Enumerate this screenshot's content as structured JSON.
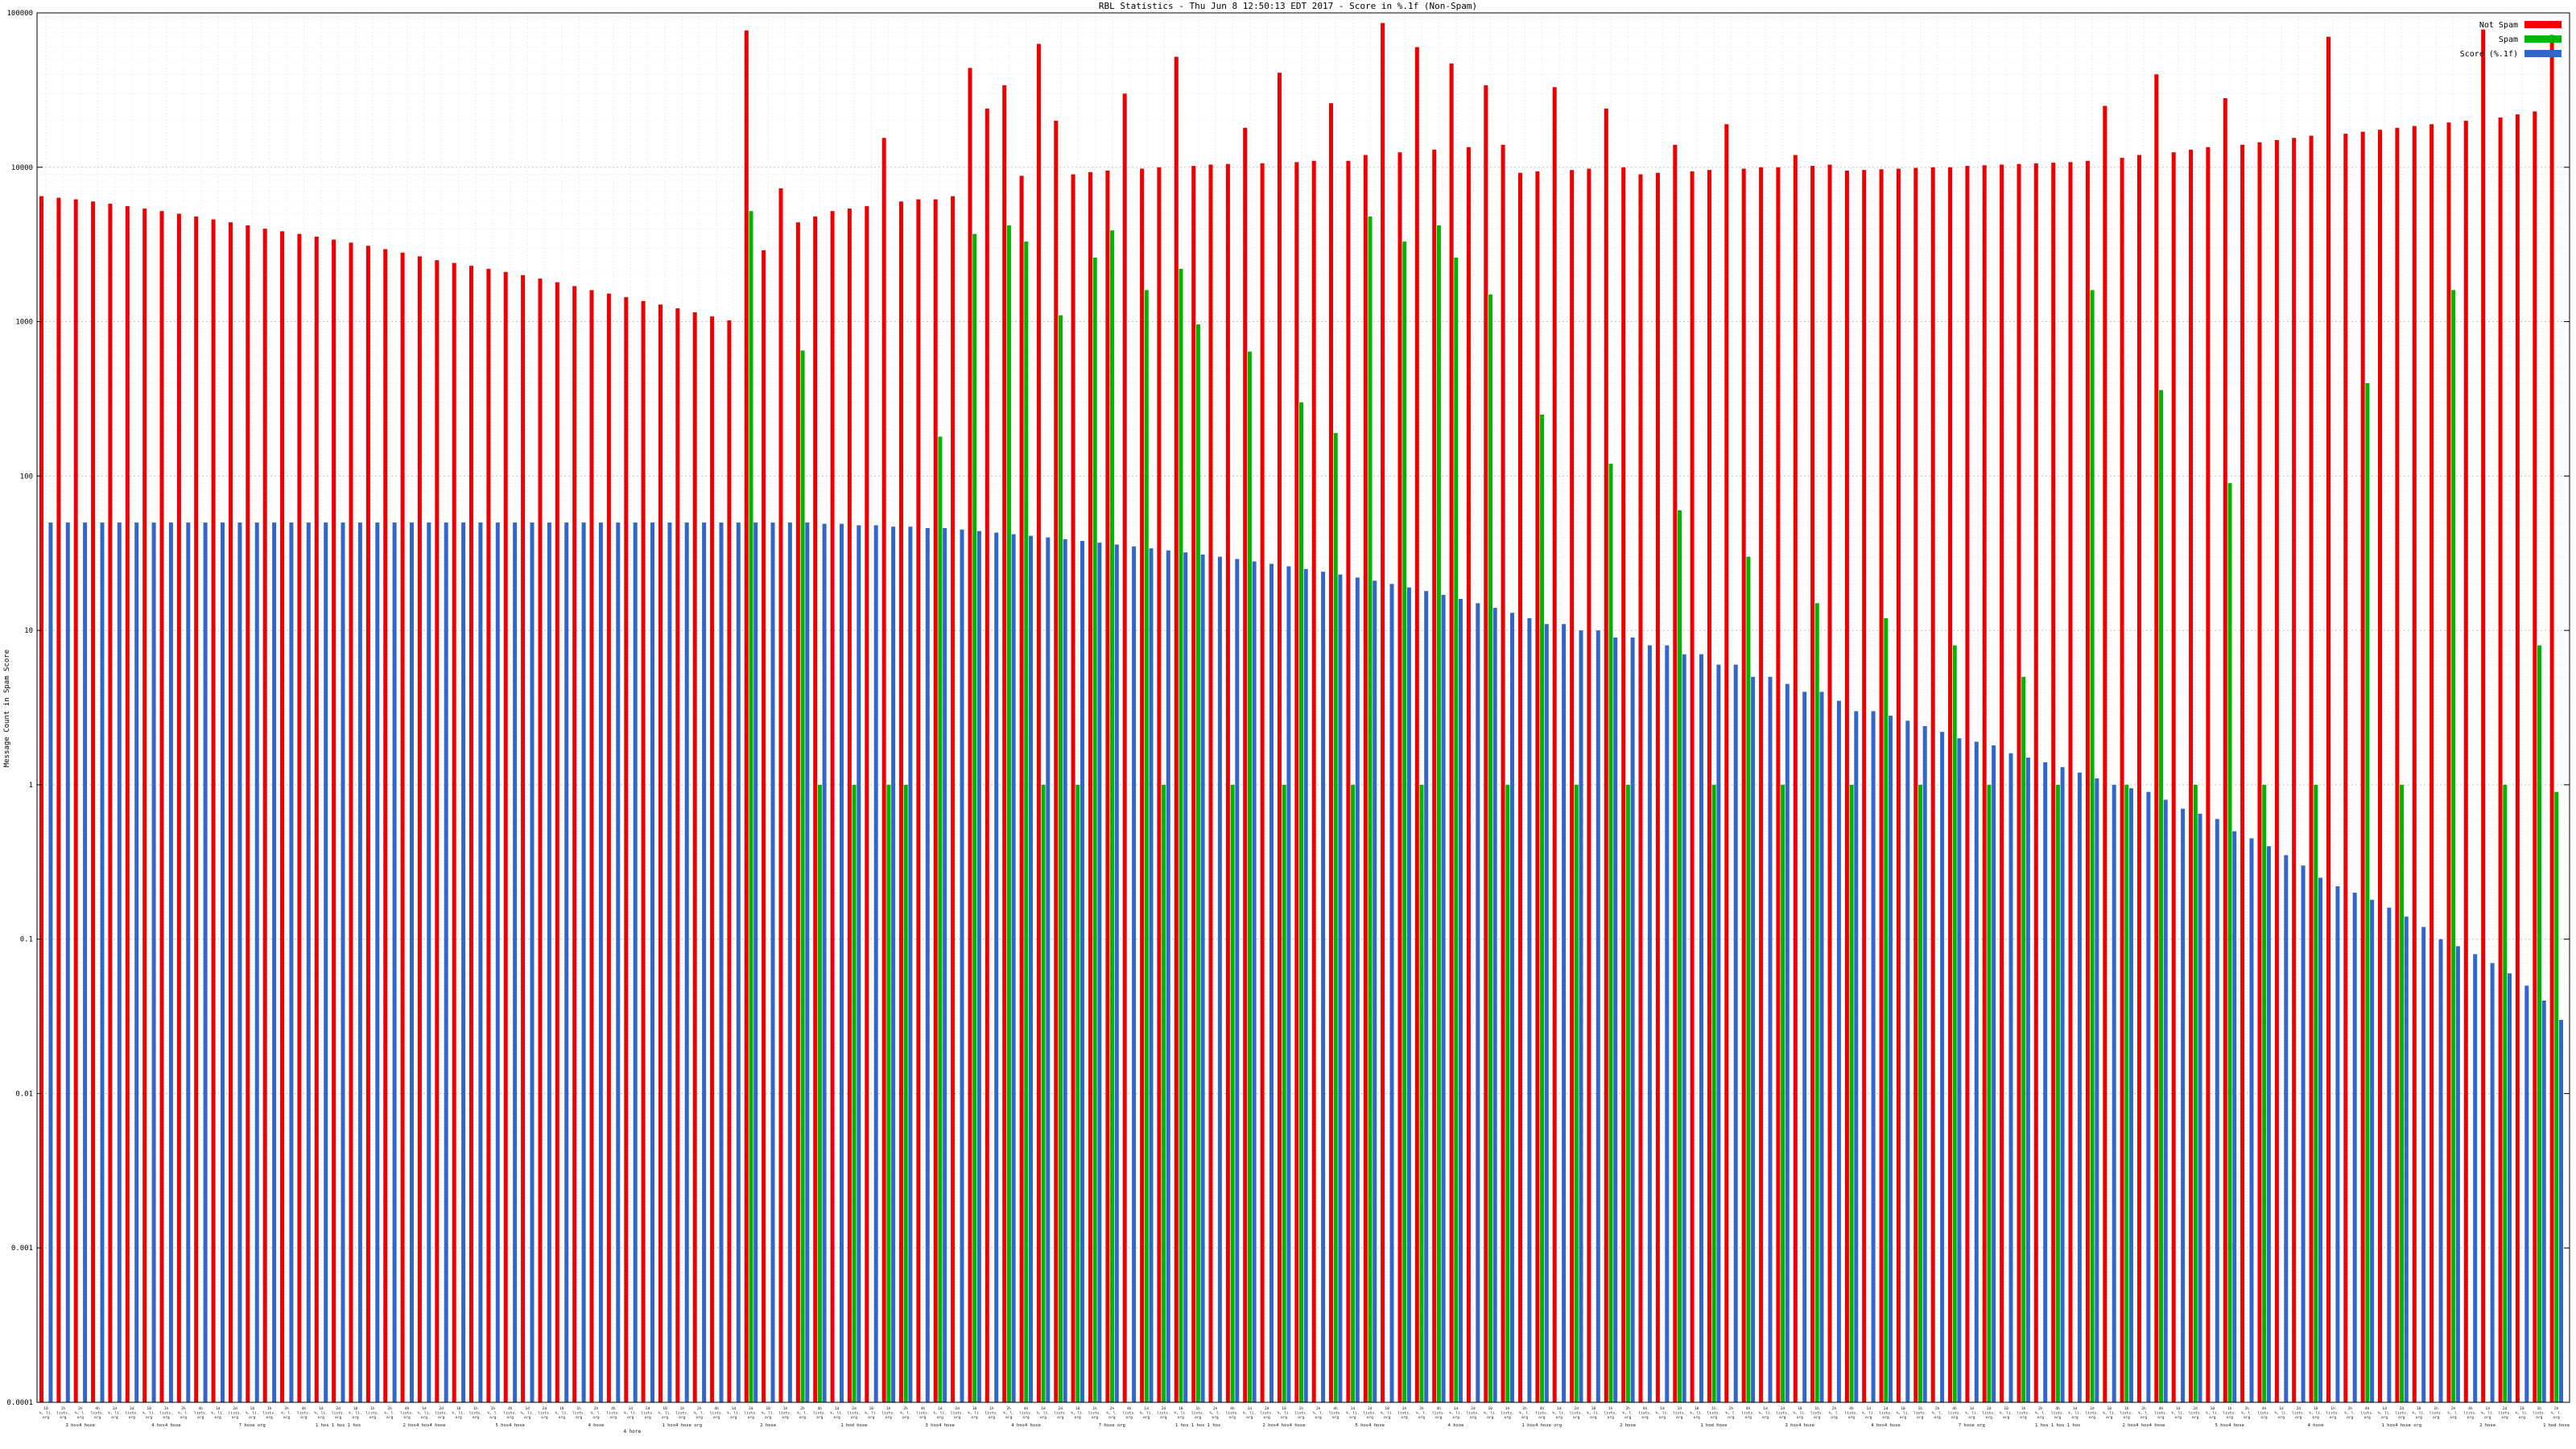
{
  "title": "RBL Statistics - Thu Jun 8 12:50:13 EDT 2017 - Score in %.1f (Non-Spam)",
  "ylabel": "Message Count in Spam Score",
  "legend": [
    {
      "label": "Not Spam",
      "color": "#ee0000"
    },
    {
      "label": "Spam",
      "color": "#00b400"
    },
    {
      "label": "Score (%.1f)",
      "color": "#3366cc"
    }
  ],
  "colors": {
    "not_spam": "#ee0000",
    "spam": "#00b400",
    "score": "#3366cc"
  },
  "x_captions": [
    "3 hos4 hose",
    "4 hos4 hose",
    "7 hose org",
    "1 hos 1 hos 1 hos",
    "2 hos4 hos4 hose",
    "5 hos4 hose",
    "4 hose",
    "1 hos4 hose org",
    "2 hose",
    "1 hod hose",
    "3 hos4 hose",
    "4 hos4 hose",
    "7 hose org",
    "1 hos 1 hos 1 hos",
    "2 hos4 hos4 hose",
    "5 hos4 hose",
    "4 hose",
    "1 hos4 hose org",
    "2 hose",
    "1 hod hose",
    "3 hos4 hose",
    "4 hos4 hose",
    "7 hose org",
    "1 hos 1 hos 1 hos",
    "2 hos4 hos4 hose",
    "5 hos4 hose",
    "4 hose",
    "1 hos4 hose org",
    "2 hose",
    "1 hod hose"
  ],
  "x_footer": [
    {
      "frac": 0.235,
      "text": "4 hore"
    }
  ],
  "chart_data": {
    "type": "bar",
    "yscale": "log",
    "ylim": [
      0.0001,
      100000
    ],
    "grid": true,
    "legend_position": "top-right",
    "y_ticks": [
      "100000",
      "10000",
      "1000",
      "100",
      "10",
      "1",
      "0.1",
      "0.01",
      "0.001",
      "0.0001"
    ],
    "series_names": [
      "Not Spam",
      "Spam",
      "Score"
    ],
    "not_spam": [
      6500,
      6350,
      6200,
      6000,
      5800,
      5600,
      5400,
      5200,
      5000,
      4800,
      4600,
      4400,
      4200,
      4000,
      3850,
      3700,
      3550,
      3400,
      3250,
      3100,
      2950,
      2800,
      2650,
      2500,
      2400,
      2300,
      2200,
      2100,
      2000,
      1900,
      1800,
      1700,
      1600,
      1520,
      1440,
      1360,
      1290,
      1220,
      1150,
      1080,
      1020,
      77000,
      2900,
      7300,
      4400,
      4800,
      5200,
      5400,
      5600,
      15500,
      6000,
      6200,
      6200,
      6500,
      44000,
      24000,
      34000,
      8800,
      63000,
      20000,
      9000,
      9300,
      9500,
      30000,
      9800,
      10000,
      52000,
      10200,
      10400,
      10500,
      18000,
      10600,
      41000,
      10800,
      11000,
      26000,
      11000,
      12000,
      86000,
      12500,
      60000,
      13000,
      47000,
      13500,
      34000,
      14000,
      9200,
      9400,
      33000,
      9600,
      9800,
      24000,
      10000,
      9000,
      9200,
      14000,
      9400,
      9600,
      19000,
      9800,
      10000,
      10000,
      12000,
      10200,
      10400,
      9500,
      9600,
      9700,
      9800,
      9900,
      10000,
      10000,
      10200,
      10300,
      10400,
      10500,
      10600,
      10700,
      10800,
      11000,
      25000,
      11500,
      12000,
      40000,
      12500,
      13000,
      13500,
      28000,
      14000,
      14500,
      15000,
      15500,
      16000,
      70000,
      16500,
      17000,
      17500,
      18000,
      18500,
      19000,
      19500,
      20000,
      78000,
      21000,
      22000,
      23000,
      72000
    ],
    "spam": [
      0,
      0,
      0,
      0,
      0,
      0,
      0,
      0,
      0,
      0,
      0,
      0,
      0,
      0,
      0,
      0,
      0,
      0,
      0,
      0,
      0,
      0,
      0,
      0,
      0,
      0,
      0,
      0,
      0,
      0,
      0,
      0,
      0,
      0,
      0,
      0,
      0,
      0,
      0,
      0,
      0,
      5200,
      0,
      0,
      650,
      1,
      0,
      1,
      0,
      1,
      1,
      0,
      180,
      0,
      3700,
      0,
      4200,
      3300,
      1,
      1100,
      1,
      2600,
      3900,
      0,
      1600,
      1,
      2200,
      960,
      0,
      1,
      640,
      0,
      1,
      300,
      0,
      190,
      1,
      4800,
      0,
      3300,
      1,
      4200,
      2600,
      0,
      1500,
      1,
      0,
      250,
      0,
      1,
      0,
      120,
      1,
      0,
      0,
      60,
      0,
      1,
      0,
      30,
      0,
      1,
      0,
      15,
      0,
      1,
      0,
      12,
      0,
      1,
      0,
      8,
      0,
      1,
      0,
      5,
      0,
      1,
      0,
      1600,
      0,
      1,
      0,
      360,
      0,
      1,
      0,
      90,
      0,
      1,
      0,
      0,
      1,
      0,
      0,
      400,
      0,
      1,
      0,
      0,
      1600,
      0,
      0,
      1,
      0,
      8,
      0.9
    ],
    "score": [
      50,
      50,
      50,
      50,
      50,
      50,
      50,
      50,
      50,
      50,
      50,
      50,
      50,
      50,
      50,
      50,
      50,
      50,
      50,
      50,
      50,
      50,
      50,
      50,
      50,
      50,
      50,
      50,
      50,
      50,
      50,
      50,
      50,
      50,
      50,
      50,
      50,
      50,
      50,
      50,
      50,
      50,
      50,
      50,
      50,
      49,
      49,
      48,
      48,
      47,
      47,
      46,
      46,
      45,
      44,
      43,
      42,
      41,
      40,
      39,
      38,
      37,
      36,
      35,
      34,
      33,
      32,
      31,
      30,
      29,
      28,
      27,
      26,
      25,
      24,
      23,
      22,
      21,
      20,
      19,
      18,
      17,
      16,
      15,
      14,
      13,
      12,
      11,
      11,
      10,
      10,
      9,
      9,
      8,
      8,
      7,
      7,
      6,
      6,
      5,
      5,
      4.5,
      4,
      4,
      3.5,
      3,
      3,
      2.8,
      2.6,
      2.4,
      2.2,
      2,
      1.9,
      1.8,
      1.6,
      1.5,
      1.4,
      1.3,
      1.2,
      1.1,
      1,
      0.95,
      0.9,
      0.8,
      0.7,
      0.65,
      0.6,
      0.5,
      0.45,
      0.4,
      0.35,
      0.3,
      0.25,
      0.22,
      0.2,
      0.18,
      0.16,
      0.14,
      0.12,
      0.1,
      0.09,
      0.08,
      0.07,
      0.06,
      0.05,
      0.04,
      0.03
    ],
    "x_labels": [
      "10|%, li.|org",
      "1h|lists.|org",
      "2h|%, l.|org",
      "4h|lists.|org",
      "1d|%, li.|org",
      "2d|lists.|org",
      "10|%, li.|org",
      "1h|lists.|org",
      "2h|%, l.|org",
      "4h|lists.|org",
      "1d|%, li.|org",
      "2d|lists.|org",
      "10|%, li.|org",
      "1h|lists.|org",
      "2h|%, l.|org",
      "4h|lists.|org",
      "1d|%, li.|org",
      "2d|lists.|org",
      "10|%, li.|org",
      "1h|lists.|org",
      "2h|%, l.|org",
      "4h|lists.|org",
      "1d|%, li.|org",
      "2d|lists.|org",
      "10|%, li.|org",
      "1h|lists.|org",
      "2h|%, l.|org",
      "4h|lists.|org",
      "1d|%, li.|org",
      "2d|lists.|org",
      "10|%, li.|org",
      "1h|lists.|org",
      "2h|%, l.|org",
      "4h|lists.|org",
      "1d|%, li.|org",
      "2d|lists.|org",
      "10|%, li.|org",
      "1h|lists.|org",
      "2h|%, l.|org",
      "4h|lists.|org",
      "1d|%, li.|org",
      "2d|lists.|org",
      "10|%, li.|org",
      "1h|lists.|org",
      "2h|%, l.|org",
      "4h|lists.|org",
      "1d|%, li.|org",
      "2d|lists.|org",
      "10|%, li.|org",
      "1h|lists.|org",
      "2h|%, l.|org",
      "4h|lists.|org",
      "1d|%, li.|org",
      "2d|lists.|org",
      "10|%, li.|org",
      "1h|lists.|org",
      "2h|%, l.|org",
      "4h|lists.|org",
      "1d|%, li.|org",
      "2d|lists.|org",
      "10|%, li.|org",
      "1h|lists.|org",
      "2h|%, l.|org",
      "4h|lists.|org",
      "1d|%, li.|org",
      "2d|lists.|org",
      "10|%, li.|org",
      "1h|lists.|org",
      "2h|%, l.|org",
      "4h|lists.|org",
      "1d|%, li.|org",
      "2d|lists.|org",
      "10|%, li.|org",
      "1h|lists.|org",
      "2h|%, l.|org",
      "4h|lists.|org",
      "1d|%, li.|org",
      "2d|lists.|org",
      "10|%, li.|org",
      "1h|lists.|org",
      "2h|%, l.|org",
      "4h|lists.|org",
      "1d|%, li.|org",
      "2d|lists.|org",
      "10|%, li.|org",
      "1h|lists.|org",
      "2h|%, l.|org",
      "4h|lists.|org",
      "1d|%, li.|org",
      "2d|lists.|org",
      "10|%, li.|org",
      "1h|lists.|org",
      "2h|%, l.|org",
      "4h|lists.|org",
      "1d|%, li.|org",
      "2d|lists.|org",
      "10|%, li.|org",
      "1h|lists.|org",
      "2h|%, l.|org",
      "4h|lists.|org",
      "1d|%, li.|org",
      "2d|lists.|org",
      "10|%, li.|org",
      "1h|lists.|org",
      "2h|%, l.|org",
      "4h|lists.|org",
      "1d|%, li.|org",
      "2d|lists.|org",
      "10|%, li.|org",
      "1h|lists.|org",
      "2h|%, l.|org",
      "4h|lists.|org",
      "1d|%, li.|org",
      "2d|lists.|org",
      "10|%, li.|org",
      "1h|lists.|org",
      "2h|%, l.|org",
      "4h|lists.|org",
      "1d|%, li.|org",
      "2d|lists.|org",
      "10|%, li.|org",
      "1h|lists.|org",
      "2h|%, l.|org",
      "4h|lists.|org",
      "1d|%, li.|org",
      "2d|lists.|org",
      "10|%, li.|org",
      "1h|lists.|org",
      "2h|%, l.|org",
      "4h|lists.|org",
      "1d|%, li.|org",
      "2d|lists.|org",
      "10|%, li.|org",
      "1h|lists.|org",
      "2h|%, l.|org",
      "4h|lists.|org",
      "1d|%, li.|org",
      "2d|lists.|org",
      "10|%, li.|org",
      "1h|lists.|org",
      "2h|%, l.|org",
      "4h|lists.|org",
      "1d|%, li.|org",
      "2d|lists.|org",
      "10|%, li.|org",
      "1h|lists.|org",
      "2h|%, l.|org"
    ]
  }
}
